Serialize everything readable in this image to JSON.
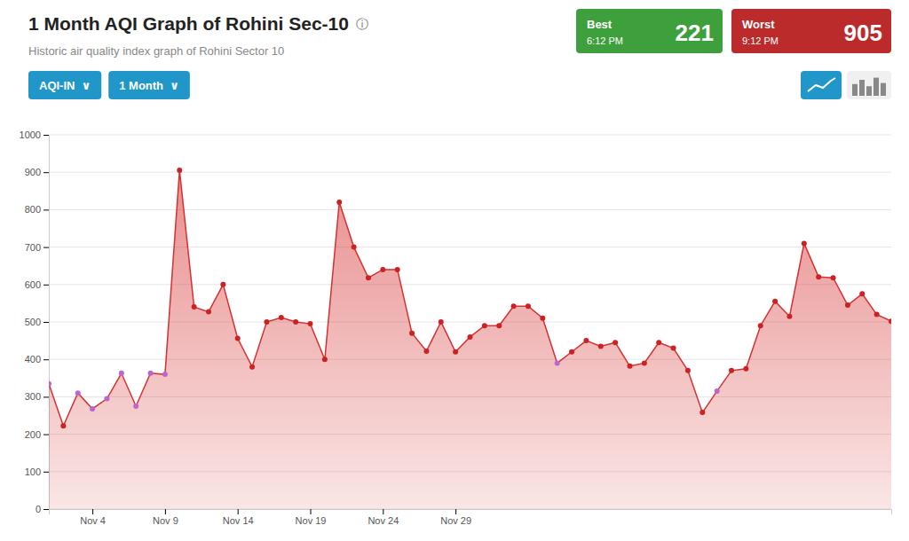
{
  "chart_data": {
    "type": "area",
    "title": "1 Month AQI Graph of Rohini Sec-10",
    "title_icon": "ⓘ",
    "subtitle": "Historic air quality index graph of Rohini Sector 10",
    "buttons": [
      {
        "text": "AQI-IN  ∨",
        "color": "#2196c8"
      },
      {
        "text": "1 Month  ∨",
        "color": "#2196c8"
      }
    ],
    "annotations": [
      {
        "text": "Best",
        "time": "6:12 PM",
        "value": 221,
        "color": "#3da03d"
      },
      {
        "text": "Worst",
        "time": "9:12 PM",
        "value": 905,
        "color": "#bc2b2b"
      }
    ],
    "categories": [
      null,
      null,
      null,
      "Nov 4",
      null,
      null,
      null,
      null,
      "Nov 9",
      null,
      null,
      null,
      null,
      "Nov 14",
      null,
      null,
      null,
      null,
      "Nov 19",
      null,
      null,
      null,
      null,
      "Nov 24",
      null,
      null,
      null,
      null,
      "Nov 29",
      null,
      null,
      null,
      null,
      null,
      null,
      null,
      null,
      null,
      null,
      null,
      null,
      null,
      null,
      null,
      null,
      null,
      null,
      null,
      null,
      null,
      null,
      null,
      null,
      null,
      null,
      null,
      null,
      null,
      null
    ],
    "values": [
      335,
      222,
      310,
      268,
      295,
      363,
      275,
      363,
      360,
      905,
      540,
      527,
      600,
      456,
      380,
      500,
      512,
      500,
      495,
      400,
      820,
      700,
      618,
      640,
      640,
      470,
      422,
      500,
      420,
      460,
      490,
      490,
      542,
      542,
      510,
      390,
      420,
      450,
      435,
      445,
      382,
      390,
      445,
      430,
      370,
      258,
      315,
      370,
      375,
      490,
      555,
      515,
      710,
      620,
      618,
      545,
      575,
      520,
      502
    ],
    "color": "#d63030",
    "marker": "circle",
    "colors": [
      "#bb66cc",
      "#cc2222",
      "#bb66cc",
      "#bb66cc",
      "#bb66cc",
      "#bb66cc",
      "#bb66cc",
      "#bb66cc",
      "#bb66cc",
      "#cc2222",
      "#cc2222",
      "#cc2222",
      "#cc2222",
      "#cc2222",
      "#cc2222",
      "#cc2222",
      "#cc2222",
      "#cc2222",
      "#cc2222",
      "#cc2222",
      "#cc2222",
      "#cc2222",
      "#cc2222",
      "#cc2222",
      "#cc2222",
      "#cc2222",
      "#cc2222",
      "#cc2222",
      "#cc2222",
      "#cc2222",
      "#cc2222",
      "#cc2222",
      "#cc2222",
      "#cc2222",
      "#cc2222",
      "#bb66cc",
      "#cc2222",
      "#cc2222",
      "#cc2222",
      "#cc2222",
      "#cc2222",
      "#cc2222",
      "#cc2222",
      "#cc2222",
      "#cc2222",
      "#cc2222",
      "#bb66cc",
      "#cc2222",
      "#cc2222",
      "#cc2222",
      "#cc2222",
      "#cc2222",
      "#cc2222",
      "#cc2222",
      "#cc2222",
      "#cc2222",
      "#cc2222",
      "#cc2222",
      "#cc2222"
    ],
    "ylim": [
      0,
      1000
    ],
    "yticks": [
      0,
      100,
      200,
      300,
      400,
      500,
      600,
      700,
      800,
      900,
      1000
    ],
    "grid": true
  }
}
